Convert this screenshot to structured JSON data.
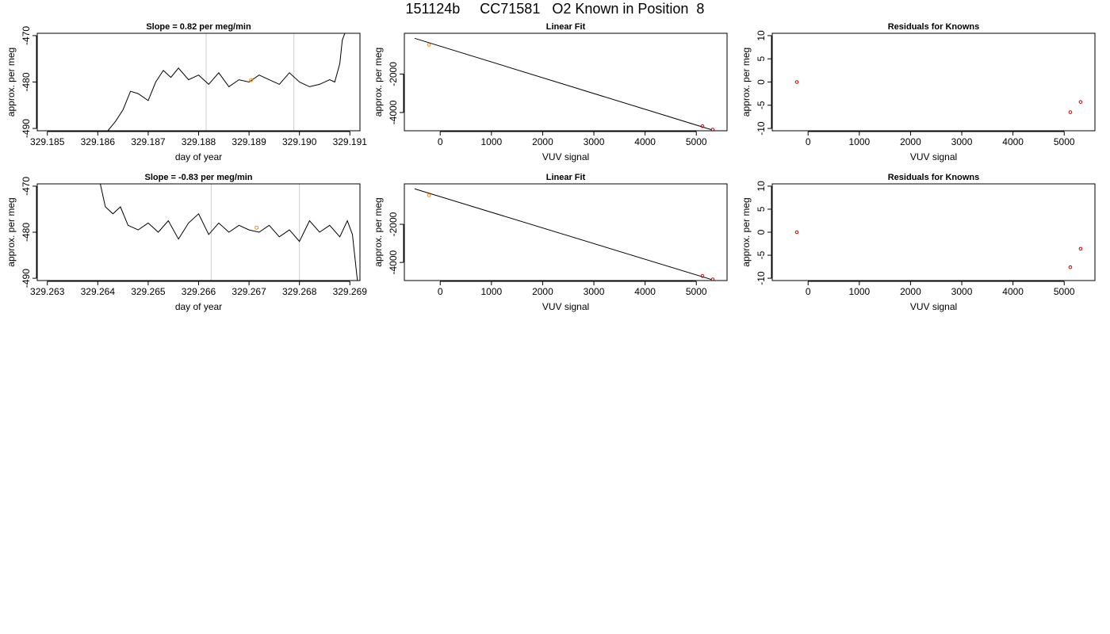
{
  "figure": {
    "title": "151124b     CC71581   O2 Known in Position  8"
  },
  "chart_data": [
    {
      "type": "line",
      "title": "Slope =  0.82  per meg/min",
      "xlabel": "day of year",
      "ylabel": "approx. per meg",
      "xlim": [
        329.1848,
        329.1912
      ],
      "ylim": [
        -490.5,
        -469.5
      ],
      "x_ticks": [
        329.185,
        329.186,
        329.187,
        329.188,
        329.189,
        329.19,
        329.191
      ],
      "x_tick_labels": [
        "329.185",
        "329.186",
        "329.187",
        "329.188",
        "329.189",
        "329.190",
        "329.191"
      ],
      "y_ticks": [
        -470,
        -480,
        -490
      ],
      "y_tick_labels": [
        "-470",
        "-480",
        "-490"
      ],
      "vlines": [
        329.18815,
        329.18989
      ],
      "vline_color": "#cccccc",
      "marker": {
        "x": 329.18904,
        "y": -479.6,
        "color": "#ff8c00"
      },
      "series": [
        {
          "color": "#000000",
          "x": [
            329.1862,
            329.18635,
            329.1865,
            329.18665,
            329.1868,
            329.187,
            329.18715,
            329.1873,
            329.18745,
            329.1876,
            329.1878,
            329.188,
            329.1882,
            329.1884,
            329.1886,
            329.1888,
            329.189,
            329.1892,
            329.1894,
            329.1896,
            329.1898,
            329.19,
            329.1902,
            329.1904,
            329.1906,
            329.1907,
            329.1908,
            329.19085,
            329.1909
          ],
          "y": [
            -490.5,
            -488.5,
            -486.0,
            -482.0,
            -482.5,
            -484.0,
            -480.0,
            -477.5,
            -479.0,
            -477.0,
            -479.5,
            -478.5,
            -480.5,
            -478.0,
            -481.0,
            -479.5,
            -480.0,
            -478.5,
            -479.5,
            -480.5,
            -478.0,
            -480.0,
            -481.0,
            -480.5,
            -479.5,
            -480.0,
            -476.0,
            -471.0,
            -469.5
          ]
        }
      ]
    },
    {
      "type": "scatter",
      "title": "Linear Fit",
      "xlabel": "VUV signal",
      "ylabel": "approx. per meg",
      "xlim": [
        -700,
        5600
      ],
      "ylim": [
        -4950,
        120
      ],
      "x_ticks": [
        0,
        1000,
        2000,
        3000,
        4000,
        5000
      ],
      "x_tick_labels": [
        "0",
        "1000",
        "2000",
        "3000",
        "4000",
        "5000"
      ],
      "y_ticks": [
        -2000,
        -4000
      ],
      "y_tick_labels": [
        "-2000",
        "-4000"
      ],
      "fit_line": {
        "x": [
          -500,
          5300
        ],
        "y": [
          -140,
          -4900
        ],
        "color": "#000000"
      },
      "points": [
        {
          "x": -220,
          "y": -480,
          "color": "#ff8c00"
        },
        {
          "x": 5120,
          "y": -4710,
          "color": "#cc0000"
        },
        {
          "x": 5320,
          "y": -4890,
          "color": "#cc0000"
        }
      ]
    },
    {
      "type": "scatter",
      "title": "Residuals for Knowns",
      "xlabel": "VUV signal",
      "ylabel": "approx. per meg",
      "xlim": [
        -700,
        5600
      ],
      "ylim": [
        -10.5,
        10.5
      ],
      "x_ticks": [
        0,
        1000,
        2000,
        3000,
        4000,
        5000
      ],
      "x_tick_labels": [
        "0",
        "1000",
        "2000",
        "3000",
        "4000",
        "5000"
      ],
      "y_ticks": [
        10,
        5,
        0,
        -5,
        -10
      ],
      "y_tick_labels": [
        "10",
        "5",
        "0",
        "-5",
        "-10"
      ],
      "points": [
        {
          "x": -220,
          "y": 0.0,
          "color": "#cc0000"
        },
        {
          "x": 5120,
          "y": -6.5,
          "color": "#cc0000"
        },
        {
          "x": 5320,
          "y": -4.3,
          "color": "#cc0000"
        }
      ]
    },
    {
      "type": "line",
      "title": "Slope =  -0.83  per meg/min",
      "xlabel": "day of year",
      "ylabel": "approx. per meg",
      "xlim": [
        329.2628,
        329.2692
      ],
      "ylim": [
        -490.5,
        -469.5
      ],
      "x_ticks": [
        329.263,
        329.264,
        329.265,
        329.266,
        329.267,
        329.268,
        329.269
      ],
      "x_tick_labels": [
        "329.263",
        "329.264",
        "329.265",
        "329.266",
        "329.267",
        "329.268",
        "329.269"
      ],
      "y_ticks": [
        -470,
        -480,
        -490
      ],
      "y_tick_labels": [
        "-470",
        "-480",
        "-490"
      ],
      "vlines": [
        329.26625,
        329.268
      ],
      "vline_color": "#cccccc",
      "marker": {
        "x": 329.26715,
        "y": -479.0,
        "color": "#ff8c00"
      },
      "series": [
        {
          "color": "#000000",
          "x": [
            329.26405,
            329.26415,
            329.2643,
            329.26445,
            329.2646,
            329.2648,
            329.265,
            329.2652,
            329.2654,
            329.2656,
            329.2658,
            329.266,
            329.2662,
            329.2664,
            329.2666,
            329.2668,
            329.267,
            329.2672,
            329.2674,
            329.2676,
            329.2678,
            329.268,
            329.2682,
            329.2684,
            329.2686,
            329.2688,
            329.26895,
            329.26905,
            329.26915
          ],
          "y": [
            -469.5,
            -474.5,
            -476.0,
            -474.5,
            -478.5,
            -479.5,
            -478.0,
            -480.0,
            -477.5,
            -481.5,
            -478.0,
            -476.0,
            -480.5,
            -478.0,
            -480.0,
            -478.5,
            -479.5,
            -480.0,
            -478.5,
            -481.0,
            -479.5,
            -482.0,
            -477.5,
            -480.0,
            -478.5,
            -481.0,
            -477.5,
            -480.5,
            -490.5
          ]
        }
      ]
    },
    {
      "type": "scatter",
      "title": "Linear Fit",
      "xlabel": "VUV signal",
      "ylabel": "approx. per meg",
      "xlim": [
        -700,
        5600
      ],
      "ylim": [
        -4950,
        120
      ],
      "x_ticks": [
        0,
        1000,
        2000,
        3000,
        4000,
        5000
      ],
      "x_tick_labels": [
        "0",
        "1000",
        "2000",
        "3000",
        "4000",
        "5000"
      ],
      "y_ticks": [
        -2000,
        -4000
      ],
      "y_tick_labels": [
        "-2000",
        "-4000"
      ],
      "fit_line": {
        "x": [
          -500,
          5300
        ],
        "y": [
          -140,
          -4900
        ],
        "color": "#000000"
      },
      "points": [
        {
          "x": -220,
          "y": -480,
          "color": "#ff8c00"
        },
        {
          "x": 5120,
          "y": -4710,
          "color": "#cc0000"
        },
        {
          "x": 5320,
          "y": -4890,
          "color": "#cc0000"
        }
      ]
    },
    {
      "type": "scatter",
      "title": "Residuals for Knowns",
      "xlabel": "VUV signal",
      "ylabel": "approx. per meg",
      "xlim": [
        -700,
        5600
      ],
      "ylim": [
        -10.5,
        10.5
      ],
      "x_ticks": [
        0,
        1000,
        2000,
        3000,
        4000,
        5000
      ],
      "x_tick_labels": [
        "0",
        "1000",
        "2000",
        "3000",
        "4000",
        "5000"
      ],
      "y_ticks": [
        10,
        5,
        0,
        -5,
        -10
      ],
      "y_tick_labels": [
        "10",
        "5",
        "0",
        "-5",
        "-10"
      ],
      "points": [
        {
          "x": -220,
          "y": 0.0,
          "color": "#cc0000"
        },
        {
          "x": 5120,
          "y": -7.6,
          "color": "#cc0000"
        },
        {
          "x": 5320,
          "y": -3.6,
          "color": "#cc0000"
        }
      ]
    }
  ]
}
